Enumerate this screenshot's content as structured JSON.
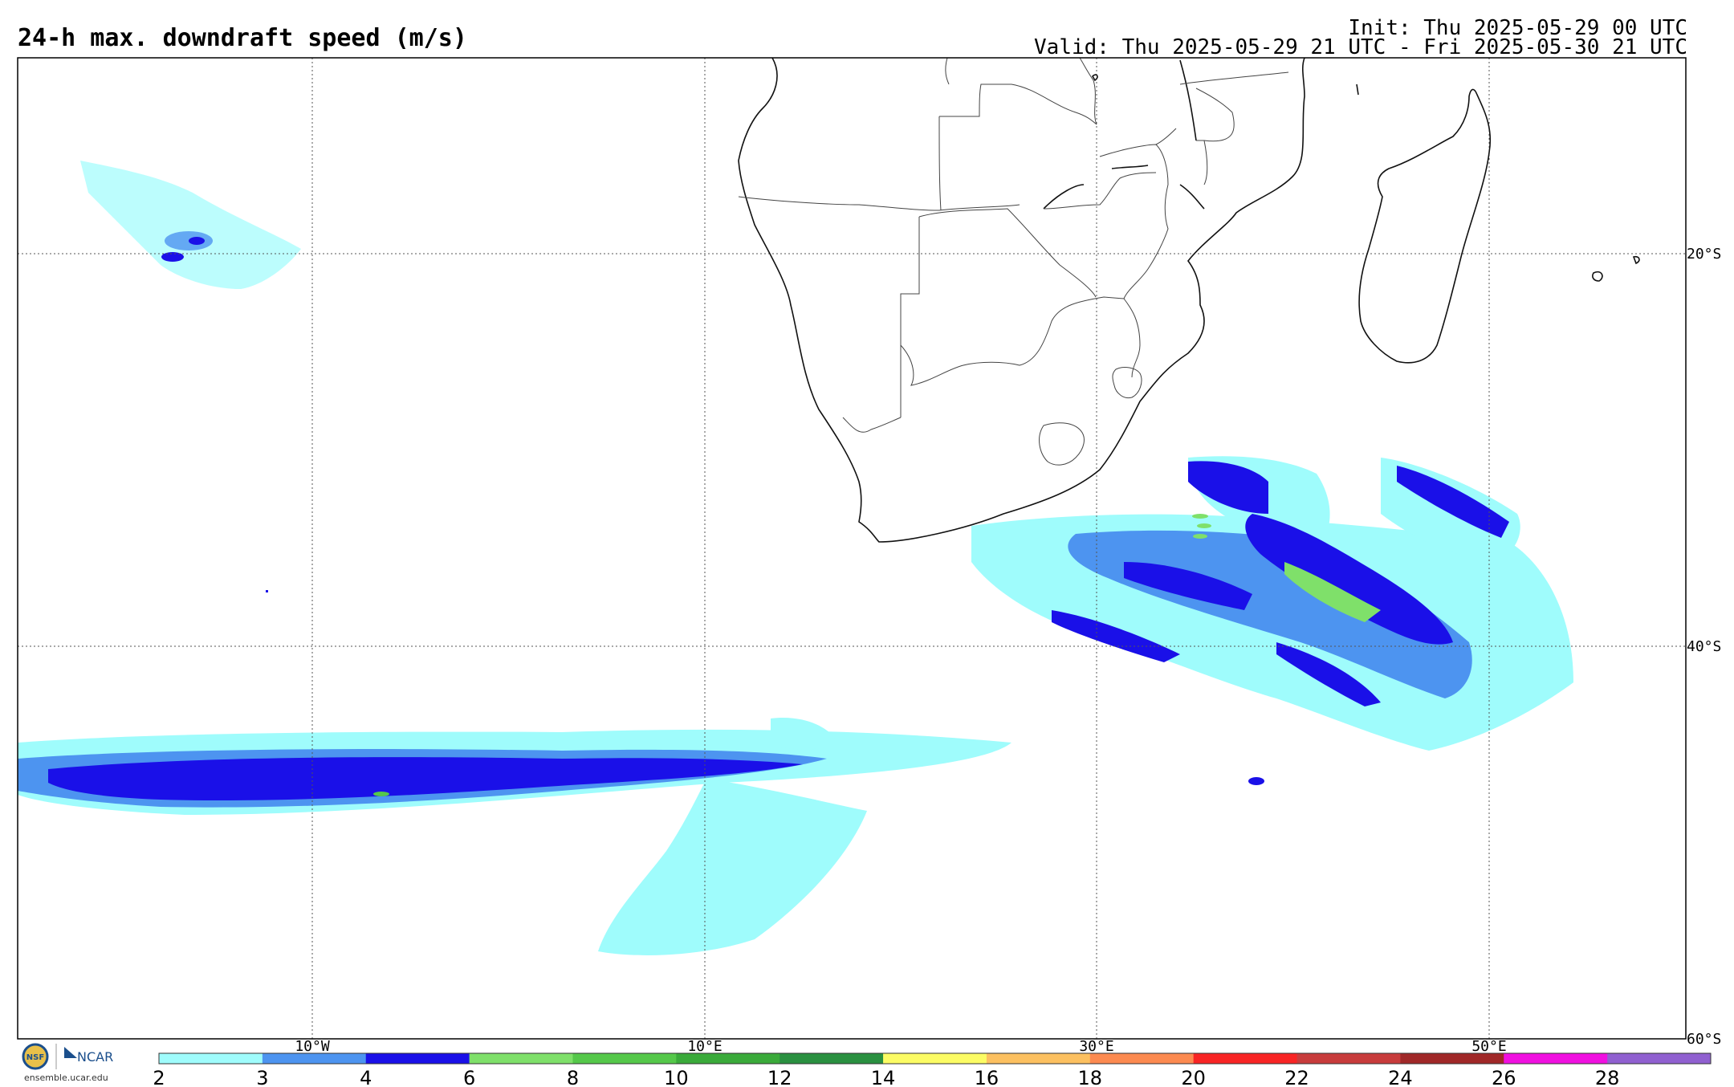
{
  "header": {
    "title": "24-h max. downdraft speed (m/s)",
    "init": "Init: Thu 2025-05-29 00 UTC",
    "valid": "Valid: Thu 2025-05-29 21 UTC - Fri 2025-05-30 21 UTC"
  },
  "map": {
    "lon_labels": [
      "10°W",
      "10°E",
      "30°E",
      "50°E"
    ],
    "lat_labels": [
      "20°S",
      "40°S",
      "60°S"
    ],
    "grid": "dotted"
  },
  "colorbar": {
    "ticks": [
      "2",
      "3",
      "4",
      "6",
      "8",
      "10",
      "12",
      "14",
      "16",
      "18",
      "20",
      "22",
      "24",
      "26",
      "28"
    ],
    "colors": [
      "#9ffcfc",
      "#4d94f0",
      "#1a10e8",
      "#7fe06a",
      "#55c84a",
      "#3aaa3a",
      "#2a9040",
      "#fcfc64",
      "#fcc060",
      "#fc8a50",
      "#f82424",
      "#c83c3c",
      "#a02828",
      "#f010e0",
      "#9060d0"
    ]
  },
  "logo": {
    "nsf": "NSF",
    "ncar": "NCAR",
    "url": "ensemble.ucar.edu"
  }
}
